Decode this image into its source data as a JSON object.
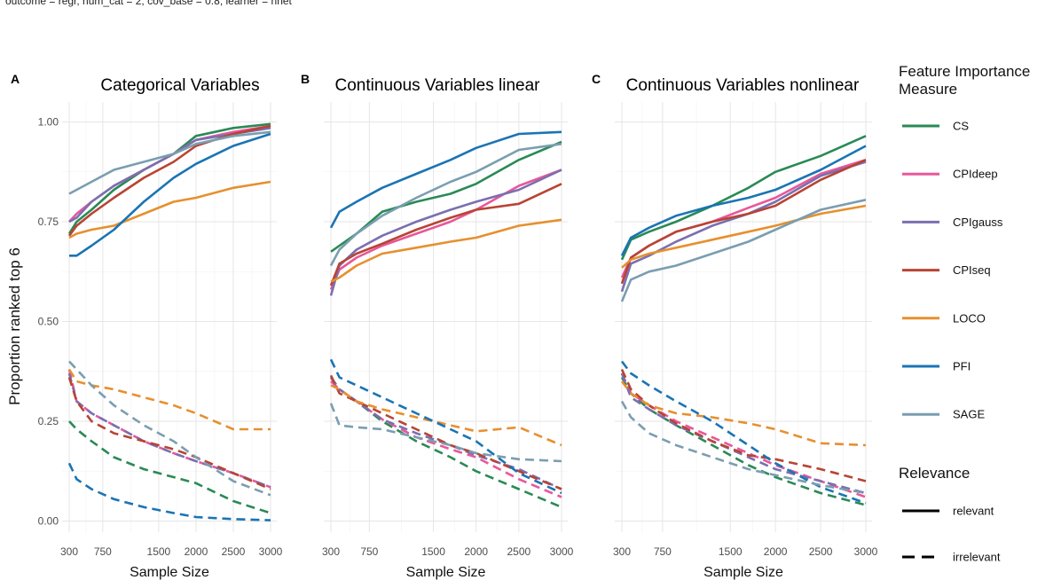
{
  "caption": "outcome = regr, num_cat = 2, cov_base = 0.8, learner = nnet",
  "ylabel": "Proportion ranked top 6",
  "yticks": [
    0.0,
    0.25,
    0.5,
    0.75,
    1.0
  ],
  "yticklabels": [
    "0.00",
    "0.25",
    "0.50",
    "0.75",
    "1.00"
  ],
  "xticks": [
    300,
    750,
    1500,
    2000,
    2500,
    3000
  ],
  "xticklabels": [
    "300",
    "750",
    "1500",
    "2000",
    "2500",
    "3000"
  ],
  "colors": {
    "CS": "#2a8a55",
    "CPIdeep": "#e8579a",
    "CPIgauss": "#7a6fb0",
    "CPIseq": "#b84434",
    "LOCO": "#e6902f",
    "PFI": "#1a74b4",
    "SAGE": "#7a9eb0"
  },
  "legend": {
    "measure_title_line1": "Feature Importance",
    "measure_title_line2": "Measure",
    "measures": [
      "CS",
      "CPIdeep",
      "CPIgauss",
      "CPIseq",
      "LOCO",
      "PFI",
      "SAGE"
    ],
    "relevance_title": "Relevance",
    "relevance": [
      "relevant",
      "irrelevant"
    ]
  },
  "chart_data": [
    {
      "type": "line",
      "tag": "A",
      "title": "Categorical Variables",
      "xlabel": "Sample Size",
      "ylabel": "Proportion ranked top 6",
      "xlim": [
        300,
        3000
      ],
      "ylim": [
        0,
        1
      ],
      "x": [
        300,
        400,
        600,
        900,
        1300,
        1700,
        2000,
        2500,
        3000
      ],
      "series": [
        {
          "name": "CS",
          "relevance": "relevant",
          "values": [
            0.72,
            0.75,
            0.78,
            0.83,
            0.88,
            0.92,
            0.965,
            0.985,
            0.995
          ]
        },
        {
          "name": "CPIdeep",
          "relevance": "relevant",
          "values": [
            0.75,
            0.77,
            0.8,
            0.84,
            0.88,
            0.92,
            0.955,
            0.975,
            0.99
          ]
        },
        {
          "name": "CPIgauss",
          "relevance": "relevant",
          "values": [
            0.75,
            0.76,
            0.8,
            0.84,
            0.88,
            0.92,
            0.955,
            0.97,
            0.985
          ]
        },
        {
          "name": "CPIseq",
          "relevance": "relevant",
          "values": [
            0.715,
            0.74,
            0.77,
            0.81,
            0.86,
            0.9,
            0.94,
            0.97,
            0.99
          ]
        },
        {
          "name": "LOCO",
          "relevance": "relevant",
          "values": [
            0.71,
            0.72,
            0.73,
            0.74,
            0.77,
            0.8,
            0.81,
            0.835,
            0.85
          ]
        },
        {
          "name": "PFI",
          "relevance": "relevant",
          "values": [
            0.665,
            0.665,
            0.69,
            0.73,
            0.8,
            0.86,
            0.895,
            0.94,
            0.97
          ]
        },
        {
          "name": "SAGE",
          "relevance": "relevant",
          "values": [
            0.82,
            0.83,
            0.85,
            0.88,
            0.9,
            0.92,
            0.945,
            0.965,
            0.975
          ]
        },
        {
          "name": "CS",
          "relevance": "irrelevant",
          "values": [
            0.25,
            0.23,
            0.2,
            0.16,
            0.13,
            0.11,
            0.095,
            0.05,
            0.02
          ]
        },
        {
          "name": "CPIdeep",
          "relevance": "irrelevant",
          "values": [
            0.38,
            0.3,
            0.27,
            0.24,
            0.2,
            0.17,
            0.15,
            0.12,
            0.085
          ]
        },
        {
          "name": "CPIgauss",
          "relevance": "irrelevant",
          "values": [
            0.37,
            0.3,
            0.27,
            0.24,
            0.2,
            0.17,
            0.15,
            0.12,
            0.085
          ]
        },
        {
          "name": "CPIseq",
          "relevance": "irrelevant",
          "values": [
            0.36,
            0.3,
            0.25,
            0.22,
            0.2,
            0.18,
            0.16,
            0.12,
            0.08
          ]
        },
        {
          "name": "LOCO",
          "relevance": "irrelevant",
          "values": [
            0.38,
            0.35,
            0.34,
            0.33,
            0.31,
            0.29,
            0.27,
            0.23,
            0.23
          ]
        },
        {
          "name": "PFI",
          "relevance": "irrelevant",
          "values": [
            0.145,
            0.105,
            0.08,
            0.055,
            0.035,
            0.02,
            0.01,
            0.005,
            0.002
          ]
        },
        {
          "name": "SAGE",
          "relevance": "irrelevant",
          "values": [
            0.4,
            0.38,
            0.34,
            0.29,
            0.24,
            0.2,
            0.16,
            0.1,
            0.065
          ]
        }
      ]
    },
    {
      "type": "line",
      "tag": "B",
      "title": "Continuous Variables linear",
      "xlabel": "Sample Size",
      "ylabel": "Proportion ranked top 6",
      "xlim": [
        300,
        3000
      ],
      "ylim": [
        0,
        1
      ],
      "x": [
        300,
        400,
        600,
        900,
        1300,
        1700,
        2000,
        2500,
        3000
      ],
      "series": [
        {
          "name": "CS",
          "relevance": "relevant",
          "values": [
            0.675,
            0.69,
            0.72,
            0.775,
            0.8,
            0.82,
            0.845,
            0.905,
            0.95
          ]
        },
        {
          "name": "CPIdeep",
          "relevance": "relevant",
          "values": [
            0.58,
            0.63,
            0.66,
            0.69,
            0.72,
            0.75,
            0.78,
            0.84,
            0.88
          ]
        },
        {
          "name": "CPIgauss",
          "relevance": "relevant",
          "values": [
            0.565,
            0.64,
            0.68,
            0.715,
            0.75,
            0.78,
            0.8,
            0.83,
            0.88
          ]
        },
        {
          "name": "CPIseq",
          "relevance": "relevant",
          "values": [
            0.59,
            0.645,
            0.67,
            0.695,
            0.73,
            0.76,
            0.78,
            0.795,
            0.845
          ]
        },
        {
          "name": "LOCO",
          "relevance": "relevant",
          "values": [
            0.6,
            0.61,
            0.64,
            0.67,
            0.685,
            0.7,
            0.71,
            0.74,
            0.755
          ]
        },
        {
          "name": "PFI",
          "relevance": "relevant",
          "values": [
            0.735,
            0.775,
            0.8,
            0.835,
            0.87,
            0.905,
            0.935,
            0.97,
            0.975
          ]
        },
        {
          "name": "SAGE",
          "relevance": "relevant",
          "values": [
            0.64,
            0.68,
            0.72,
            0.765,
            0.81,
            0.85,
            0.875,
            0.93,
            0.945
          ]
        },
        {
          "name": "CS",
          "relevance": "irrelevant",
          "values": [
            0.36,
            0.33,
            0.3,
            0.25,
            0.2,
            0.16,
            0.125,
            0.08,
            0.035
          ]
        },
        {
          "name": "CPIdeep",
          "relevance": "irrelevant",
          "values": [
            0.35,
            0.33,
            0.3,
            0.255,
            0.21,
            0.18,
            0.16,
            0.105,
            0.06
          ]
        },
        {
          "name": "CPIgauss",
          "relevance": "irrelevant",
          "values": [
            0.36,
            0.33,
            0.3,
            0.255,
            0.22,
            0.19,
            0.165,
            0.13,
            0.08
          ]
        },
        {
          "name": "CPIseq",
          "relevance": "irrelevant",
          "values": [
            0.365,
            0.32,
            0.3,
            0.27,
            0.23,
            0.19,
            0.17,
            0.125,
            0.08
          ]
        },
        {
          "name": "LOCO",
          "relevance": "irrelevant",
          "values": [
            0.34,
            0.33,
            0.3,
            0.28,
            0.26,
            0.24,
            0.225,
            0.235,
            0.19
          ]
        },
        {
          "name": "PFI",
          "relevance": "irrelevant",
          "values": [
            0.405,
            0.36,
            0.34,
            0.31,
            0.27,
            0.23,
            0.2,
            0.12,
            0.07
          ]
        },
        {
          "name": "SAGE",
          "relevance": "irrelevant",
          "values": [
            0.295,
            0.24,
            0.235,
            0.23,
            0.21,
            0.19,
            0.17,
            0.155,
            0.15
          ]
        }
      ]
    },
    {
      "type": "line",
      "tag": "C",
      "title": "Continuous Variables nonlinear",
      "xlabel": "Sample Size",
      "ylabel": "Proportion ranked top 6",
      "xlim": [
        300,
        3000
      ],
      "ylim": [
        0,
        1
      ],
      "x": [
        300,
        400,
        600,
        900,
        1300,
        1700,
        2000,
        2500,
        3000
      ],
      "series": [
        {
          "name": "CS",
          "relevance": "relevant",
          "values": [
            0.655,
            0.705,
            0.725,
            0.75,
            0.79,
            0.835,
            0.875,
            0.915,
            0.965
          ]
        },
        {
          "name": "CPIdeep",
          "relevance": "relevant",
          "values": [
            0.61,
            0.66,
            0.69,
            0.725,
            0.75,
            0.785,
            0.81,
            0.87,
            0.905
          ]
        },
        {
          "name": "CPIgauss",
          "relevance": "relevant",
          "values": [
            0.575,
            0.645,
            0.665,
            0.7,
            0.74,
            0.77,
            0.8,
            0.865,
            0.9
          ]
        },
        {
          "name": "CPIseq",
          "relevance": "relevant",
          "values": [
            0.595,
            0.66,
            0.69,
            0.725,
            0.75,
            0.77,
            0.79,
            0.855,
            0.905
          ]
        },
        {
          "name": "LOCO",
          "relevance": "relevant",
          "values": [
            0.635,
            0.655,
            0.67,
            0.685,
            0.705,
            0.725,
            0.74,
            0.77,
            0.79
          ]
        },
        {
          "name": "PFI",
          "relevance": "relevant",
          "values": [
            0.665,
            0.71,
            0.735,
            0.765,
            0.79,
            0.81,
            0.83,
            0.88,
            0.94
          ]
        },
        {
          "name": "SAGE",
          "relevance": "relevant",
          "values": [
            0.55,
            0.605,
            0.625,
            0.64,
            0.67,
            0.7,
            0.73,
            0.78,
            0.805
          ]
        },
        {
          "name": "CS",
          "relevance": "irrelevant",
          "values": [
            0.36,
            0.32,
            0.28,
            0.24,
            0.19,
            0.14,
            0.11,
            0.07,
            0.04
          ]
        },
        {
          "name": "CPIdeep",
          "relevance": "irrelevant",
          "values": [
            0.37,
            0.32,
            0.29,
            0.25,
            0.21,
            0.17,
            0.14,
            0.1,
            0.06
          ]
        },
        {
          "name": "CPIgauss",
          "relevance": "irrelevant",
          "values": [
            0.37,
            0.31,
            0.28,
            0.24,
            0.2,
            0.16,
            0.13,
            0.1,
            0.07
          ]
        },
        {
          "name": "CPIseq",
          "relevance": "irrelevant",
          "values": [
            0.38,
            0.33,
            0.29,
            0.245,
            0.2,
            0.165,
            0.155,
            0.13,
            0.1
          ]
        },
        {
          "name": "LOCO",
          "relevance": "irrelevant",
          "values": [
            0.35,
            0.32,
            0.29,
            0.27,
            0.26,
            0.245,
            0.23,
            0.195,
            0.19
          ]
        },
        {
          "name": "PFI",
          "relevance": "irrelevant",
          "values": [
            0.4,
            0.37,
            0.34,
            0.3,
            0.25,
            0.19,
            0.145,
            0.085,
            0.045
          ]
        },
        {
          "name": "SAGE",
          "relevance": "irrelevant",
          "values": [
            0.3,
            0.26,
            0.22,
            0.19,
            0.16,
            0.13,
            0.115,
            0.09,
            0.07
          ]
        }
      ]
    }
  ]
}
